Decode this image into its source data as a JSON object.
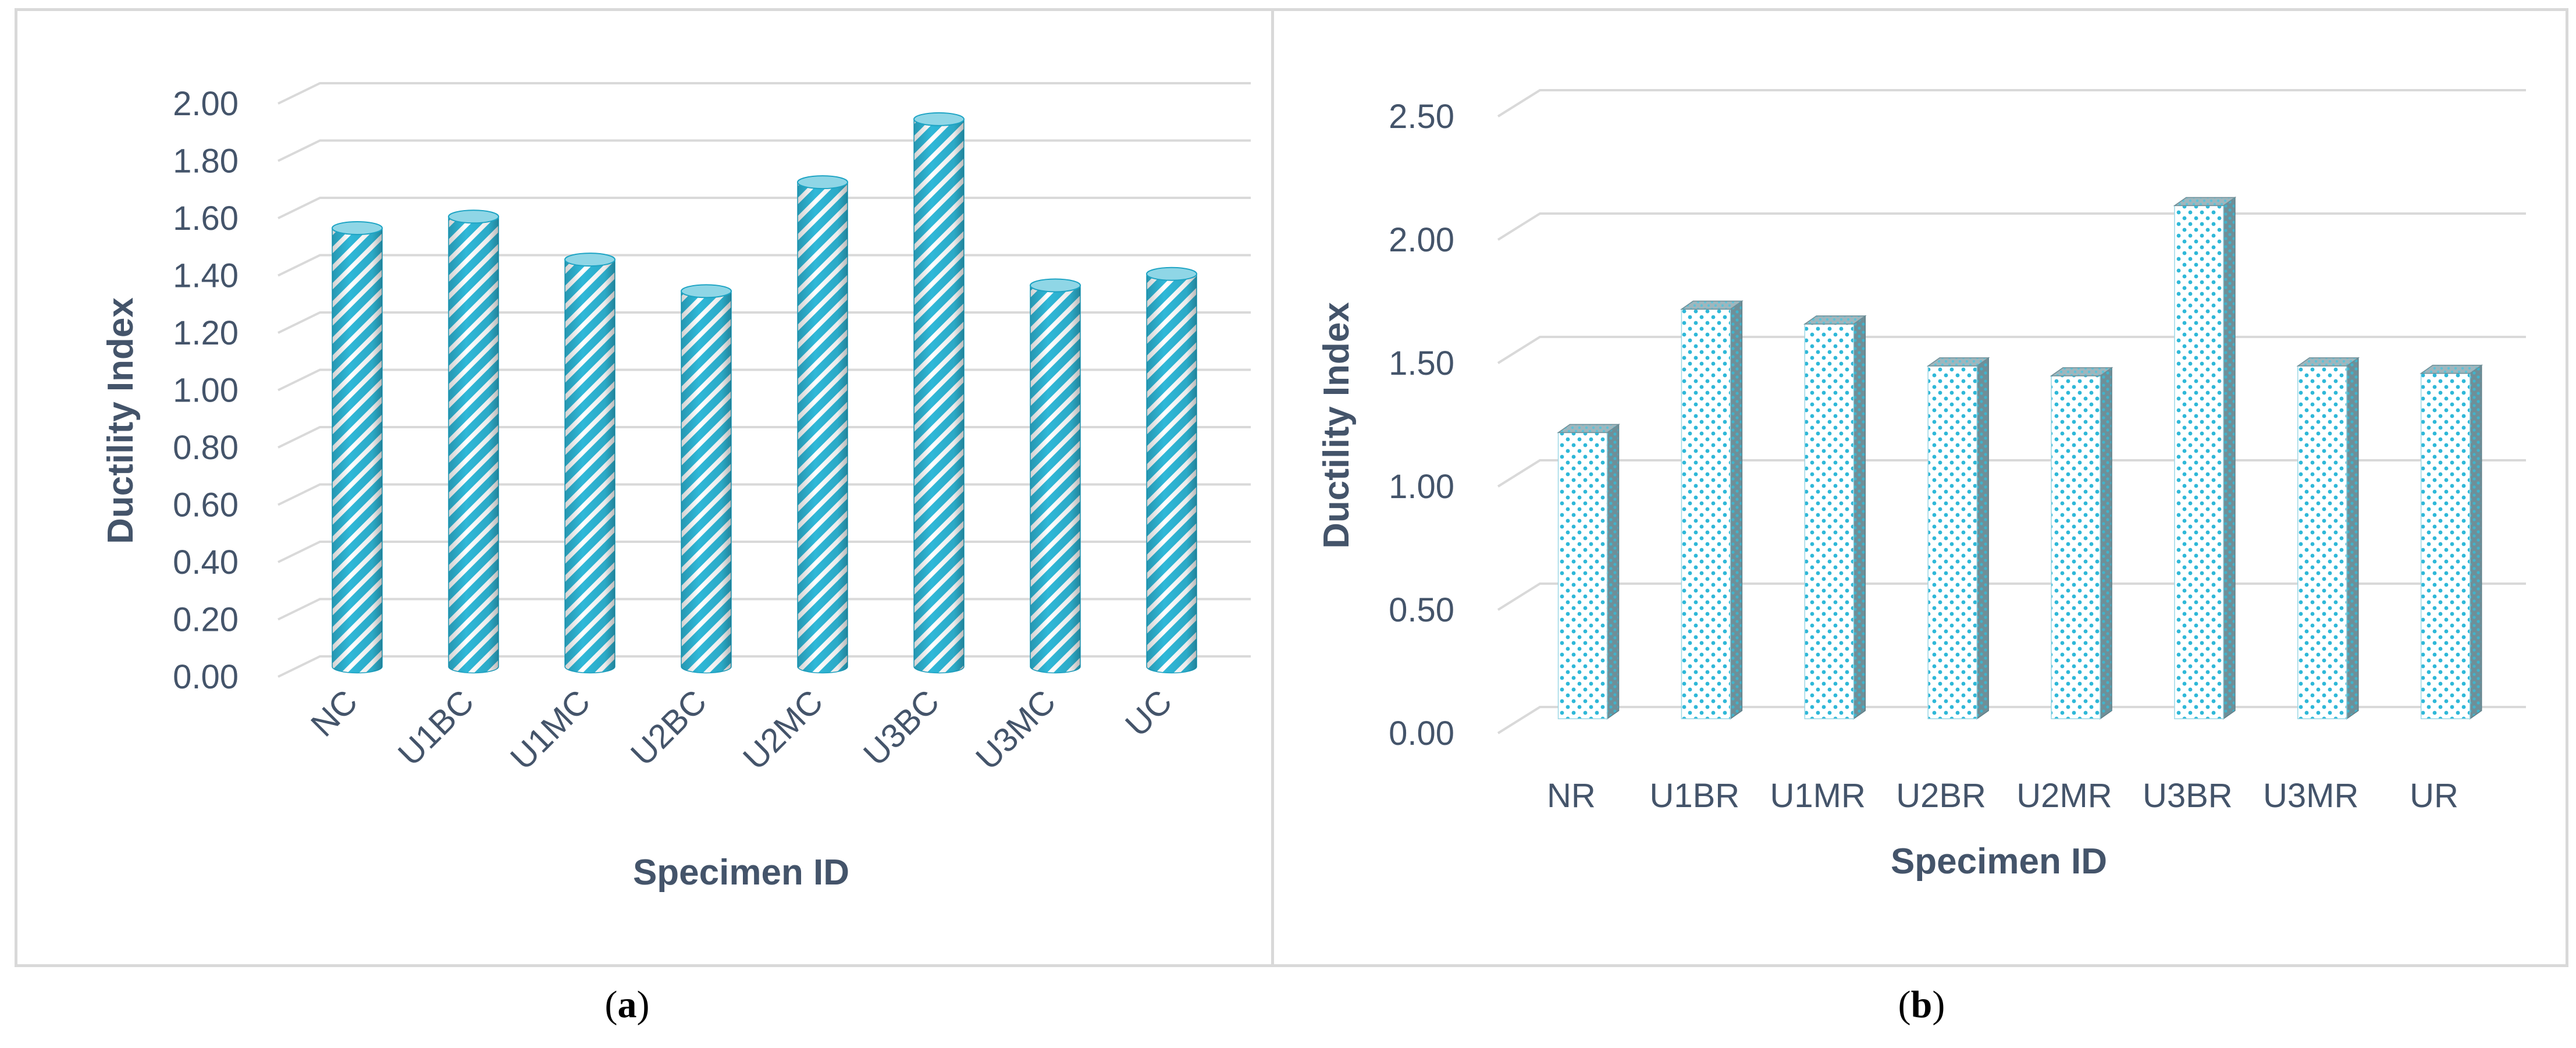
{
  "chart_data": [
    {
      "type": "bar",
      "panel_label": "a",
      "categories": [
        "NC",
        "U1BC",
        "U1MC",
        "U2BC",
        "U2MC",
        "U3BC",
        "U3MC",
        "UC"
      ],
      "values": [
        1.53,
        1.57,
        1.42,
        1.31,
        1.69,
        1.91,
        1.33,
        1.37
      ],
      "ylabel": "Ductility Index",
      "xlabel": "Specimen ID",
      "ylim": [
        0,
        2.0
      ],
      "yticks": [
        "0.00",
        "0.20",
        "0.40",
        "0.60",
        "0.80",
        "1.00",
        "1.20",
        "1.40",
        "1.60",
        "1.80",
        "2.00"
      ],
      "grid": true,
      "bar_style": "3d cylinder, diagonal hatch",
      "colors": {
        "bar": "#2fb8d8",
        "hatch": "#ffffff",
        "grid": "#d9d9d9",
        "text": "#44546a"
      }
    },
    {
      "type": "bar",
      "panel_label": "b",
      "categories": [
        "NR",
        "U1BR",
        "U1MR",
        "U2BR",
        "U2MR",
        "U3BR",
        "U3MR",
        "UR"
      ],
      "values": [
        1.16,
        1.66,
        1.6,
        1.43,
        1.39,
        2.08,
        1.43,
        1.4
      ],
      "ylabel": "Ductility Index",
      "xlabel": "Specimen ID",
      "ylim": [
        0,
        2.5
      ],
      "yticks": [
        "0.00",
        "0.50",
        "1.00",
        "1.50",
        "2.00",
        "2.50"
      ],
      "grid": true,
      "bar_style": "3d box, dotted fill",
      "colors": {
        "dot": "#2fb8d8",
        "face": "#ffffff",
        "side": "#6f8f98",
        "grid": "#d9d9d9",
        "text": "#44546a"
      }
    }
  ]
}
